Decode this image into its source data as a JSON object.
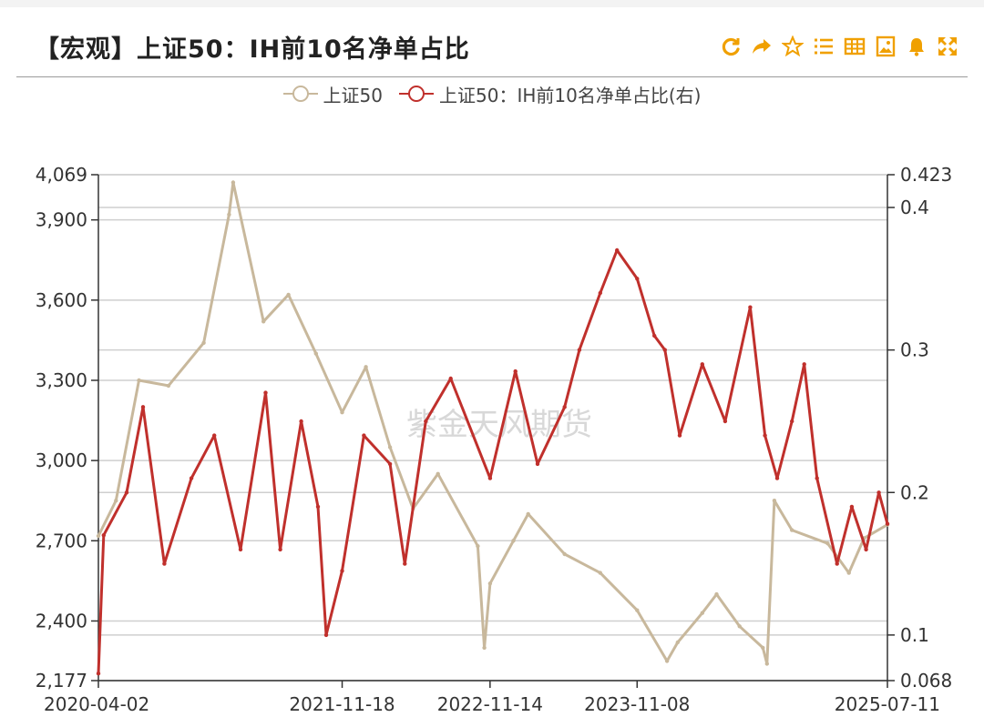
{
  "title": "【宏观】上证50：IH前10名净单占比",
  "toolbar": {
    "icons": [
      "refresh-icon",
      "share-icon",
      "star-icon",
      "list-icon",
      "table-icon",
      "image-icon",
      "bell-icon",
      "fullscreen-icon"
    ],
    "accent": "#f0a000"
  },
  "watermark": "紫金天风期货",
  "chart_data": {
    "type": "line",
    "legend_position": "top-center",
    "grid": true,
    "x_tick_labels": [
      "2020-04-02",
      "2021-11-18",
      "2022-11-14",
      "2023-11-08",
      "2025-07-11"
    ],
    "x_range": [
      "2020-04-02",
      "2025-07-11"
    ],
    "left_axis": {
      "ticks": [
        2177,
        2400,
        2700,
        3000,
        3300,
        3600,
        3900,
        4069
      ],
      "tick_labels": [
        "2,177",
        "2,400",
        "2,700",
        "3,000",
        "3,300",
        "3,600",
        "3,900",
        "4,069"
      ],
      "range": [
        2177,
        4069
      ]
    },
    "right_axis": {
      "ticks": [
        0.068,
        0.1,
        0.2,
        0.3,
        0.4,
        0.423
      ],
      "tick_labels": [
        "0.068",
        "0.1",
        "0.2",
        "0.3",
        "0.4",
        "0.423"
      ],
      "range": [
        0.068,
        0.423
      ]
    },
    "series": [
      {
        "name": "上证50",
        "axis": "left",
        "color": "#c8b89c",
        "points": [
          [
            "2020-04-02",
            2718
          ],
          [
            "2020-05-15",
            2850
          ],
          [
            "2020-07-10",
            3300
          ],
          [
            "2020-09-20",
            3280
          ],
          [
            "2020-12-15",
            3440
          ],
          [
            "2021-02-15",
            3920
          ],
          [
            "2021-02-25",
            4040
          ],
          [
            "2021-05-10",
            3520
          ],
          [
            "2021-07-10",
            3620
          ],
          [
            "2021-09-15",
            3400
          ],
          [
            "2021-11-18",
            3180
          ],
          [
            "2022-01-15",
            3350
          ],
          [
            "2022-03-15",
            3050
          ],
          [
            "2022-05-10",
            2820
          ],
          [
            "2022-07-10",
            2950
          ],
          [
            "2022-10-15",
            2680
          ],
          [
            "2022-10-31",
            2300
          ],
          [
            "2022-11-14",
            2540
          ],
          [
            "2023-01-10",
            2700
          ],
          [
            "2023-02-15",
            2800
          ],
          [
            "2023-05-15",
            2650
          ],
          [
            "2023-08-10",
            2580
          ],
          [
            "2023-11-08",
            2440
          ],
          [
            "2024-01-20",
            2250
          ],
          [
            "2024-02-15",
            2320
          ],
          [
            "2024-04-15",
            2430
          ],
          [
            "2024-05-20",
            2500
          ],
          [
            "2024-07-15",
            2380
          ],
          [
            "2024-09-10",
            2300
          ],
          [
            "2024-09-20",
            2240
          ],
          [
            "2024-10-08",
            2850
          ],
          [
            "2024-11-20",
            2740
          ],
          [
            "2025-02-15",
            2690
          ],
          [
            "2025-04-08",
            2580
          ],
          [
            "2025-05-15",
            2710
          ],
          [
            "2025-07-11",
            2760
          ]
        ]
      },
      {
        "name": "上证50：IH前10名净单占比(右)",
        "axis": "right",
        "color": "#c0302c",
        "points": [
          [
            "2020-04-02",
            0.073
          ],
          [
            "2020-04-15",
            0.17
          ],
          [
            "2020-06-10",
            0.2
          ],
          [
            "2020-07-20",
            0.26
          ],
          [
            "2020-09-10",
            0.15
          ],
          [
            "2020-11-15",
            0.21
          ],
          [
            "2021-01-10",
            0.24
          ],
          [
            "2021-03-15",
            0.16
          ],
          [
            "2021-05-15",
            0.27
          ],
          [
            "2021-06-20",
            0.16
          ],
          [
            "2021-08-10",
            0.25
          ],
          [
            "2021-09-20",
            0.19
          ],
          [
            "2021-10-10",
            0.1
          ],
          [
            "2021-11-18",
            0.145
          ],
          [
            "2022-01-10",
            0.24
          ],
          [
            "2022-03-15",
            0.22
          ],
          [
            "2022-04-20",
            0.15
          ],
          [
            "2022-06-10",
            0.25
          ],
          [
            "2022-08-10",
            0.28
          ],
          [
            "2022-11-14",
            0.21
          ],
          [
            "2023-01-15",
            0.285
          ],
          [
            "2023-03-10",
            0.22
          ],
          [
            "2023-05-15",
            0.26
          ],
          [
            "2023-06-20",
            0.3
          ],
          [
            "2023-08-10",
            0.34
          ],
          [
            "2023-09-20",
            0.37
          ],
          [
            "2023-11-08",
            0.35
          ],
          [
            "2023-12-20",
            0.31
          ],
          [
            "2024-01-15",
            0.3
          ],
          [
            "2024-02-20",
            0.24
          ],
          [
            "2024-04-15",
            0.29
          ],
          [
            "2024-06-10",
            0.25
          ],
          [
            "2024-08-10",
            0.33
          ],
          [
            "2024-09-15",
            0.24
          ],
          [
            "2024-10-15",
            0.21
          ],
          [
            "2024-11-20",
            0.25
          ],
          [
            "2024-12-20",
            0.29
          ],
          [
            "2025-01-20",
            0.21
          ],
          [
            "2025-03-10",
            0.15
          ],
          [
            "2025-04-15",
            0.19
          ],
          [
            "2025-05-20",
            0.16
          ],
          [
            "2025-06-20",
            0.2
          ],
          [
            "2025-07-11",
            0.178
          ]
        ]
      }
    ]
  }
}
